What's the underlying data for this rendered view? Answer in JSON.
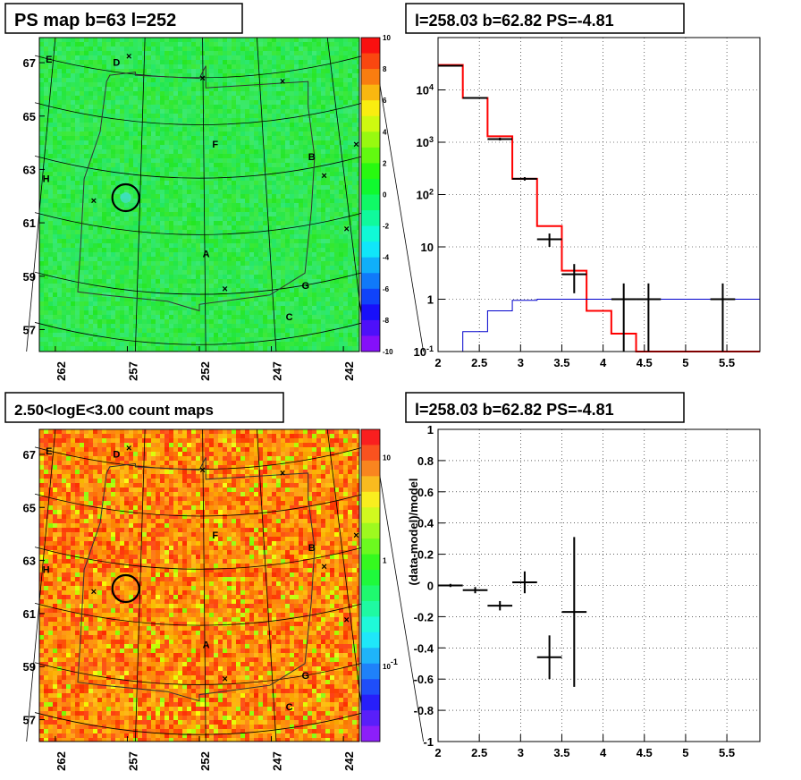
{
  "chart_data": [
    {
      "type": "heatmap",
      "title": "PS map b=63 l=252",
      "xticks": [
        "262",
        "257",
        "252",
        "247",
        "242"
      ],
      "yticks": [
        "67",
        "65",
        "63",
        "61",
        "59",
        "57"
      ],
      "colorbar": {
        "min": -10,
        "max": 10,
        "ticks": [
          "10",
          "8",
          "6",
          "4",
          "2",
          "0",
          "-2",
          "-4",
          "-6",
          "-8",
          "-10"
        ]
      },
      "markers": [
        "E",
        "D",
        "F",
        "B",
        "H",
        "A",
        "G",
        "C"
      ],
      "colors": {
        "background": "#33ee66",
        "circle": "#000000"
      }
    },
    {
      "type": "line",
      "title": "l=258.03 b=62.82 PS=-4.81",
      "yscale": "log",
      "xlim": [
        2,
        5.9
      ],
      "ylim": [
        0.1,
        100000
      ],
      "xticks": [
        "2",
        "2.5",
        "3",
        "3.5",
        "4",
        "4.5",
        "5",
        "5.5"
      ],
      "yticks": [
        "10^4",
        "10^3",
        "10^2",
        "10",
        "1",
        "10^-1"
      ],
      "grid": true,
      "series": [
        {
          "color": "#ff0000",
          "kind": "step",
          "edges": [
            2,
            2.3,
            2.6,
            2.9,
            3.2,
            3.5,
            3.8,
            4.1,
            4.4,
            5.9
          ],
          "values": [
            30000,
            7000,
            1300,
            200,
            25,
            3.5,
            0.6,
            0.22,
            0.1
          ]
        },
        {
          "color": "#0000cc",
          "kind": "step",
          "edges": [
            2,
            2.3,
            2.6,
            2.9,
            3.2,
            5.9
          ],
          "values": [
            0.1,
            0.24,
            0.6,
            0.95,
            1.0
          ]
        },
        {
          "color": "#000000",
          "kind": "errorbar",
          "points": [
            {
              "x": 2.15,
              "y": 29000,
              "xerr": 0.15,
              "ylo": 28000,
              "yhi": 30000
            },
            {
              "x": 2.45,
              "y": 7000,
              "xerr": 0.15,
              "ylo": 6800,
              "yhi": 7200
            },
            {
              "x": 2.75,
              "y": 1150,
              "xerr": 0.15,
              "ylo": 1080,
              "yhi": 1220
            },
            {
              "x": 3.05,
              "y": 200,
              "xerr": 0.15,
              "ylo": 185,
              "yhi": 215
            },
            {
              "x": 3.35,
              "y": 14,
              "xerr": 0.15,
              "ylo": 10,
              "yhi": 18
            },
            {
              "x": 3.65,
              "y": 3,
              "xerr": 0.15,
              "ylo": 1.3,
              "yhi": 4.7
            },
            {
              "x": 4.25,
              "y": 1,
              "xerr": 0.15,
              "ylo": 0.1,
              "yhi": 2
            },
            {
              "x": 4.55,
              "y": 1,
              "xerr": 0.15,
              "ylo": 0.1,
              "yhi": 2
            },
            {
              "x": 5.45,
              "y": 1,
              "xerr": 0.15,
              "ylo": 0.1,
              "yhi": 2
            }
          ]
        }
      ]
    },
    {
      "type": "heatmap",
      "title": "2.50<logE<3.00 count maps",
      "xticks": [
        "262",
        "257",
        "252",
        "247",
        "242"
      ],
      "yticks": [
        "67",
        "65",
        "63",
        "61",
        "59",
        "57"
      ],
      "colorbar": {
        "scale": "log",
        "ticks": [
          "10",
          "1",
          "10^-1"
        ]
      },
      "markers": [
        "E",
        "D",
        "F",
        "B",
        "H",
        "A",
        "G",
        "C"
      ],
      "colors": {
        "background": "#ff9a22",
        "circle": "#000000"
      }
    },
    {
      "type": "scatter",
      "title": "l=258.03 b=62.82 PS=-4.81",
      "ylabel": "(data-model)/model",
      "xlim": [
        2,
        5.9
      ],
      "ylim": [
        -1,
        1
      ],
      "xticks": [
        "2",
        "2.5",
        "3",
        "3.5",
        "4",
        "4.5",
        "5",
        "5.5"
      ],
      "yticks": [
        "1",
        "0.8",
        "0.6",
        "0.4",
        "0.2",
        "0",
        "-0.2",
        "-0.4",
        "-0.6",
        "-0.8",
        "-1"
      ],
      "grid": true,
      "series": [
        {
          "color": "#000000",
          "kind": "errorbar",
          "points": [
            {
              "x": 2.15,
              "y": 0.0,
              "xerr": 0.15,
              "ylo": -0.01,
              "yhi": 0.01
            },
            {
              "x": 2.45,
              "y": -0.03,
              "xerr": 0.15,
              "ylo": -0.05,
              "yhi": -0.01
            },
            {
              "x": 2.75,
              "y": -0.13,
              "xerr": 0.15,
              "ylo": -0.16,
              "yhi": -0.1
            },
            {
              "x": 3.05,
              "y": 0.02,
              "xerr": 0.15,
              "ylo": -0.05,
              "yhi": 0.09
            },
            {
              "x": 3.35,
              "y": -0.46,
              "xerr": 0.15,
              "ylo": -0.6,
              "yhi": -0.32
            },
            {
              "x": 3.65,
              "y": -0.17,
              "xerr": 0.15,
              "ylo": -0.65,
              "yhi": 0.31
            }
          ]
        }
      ]
    }
  ]
}
